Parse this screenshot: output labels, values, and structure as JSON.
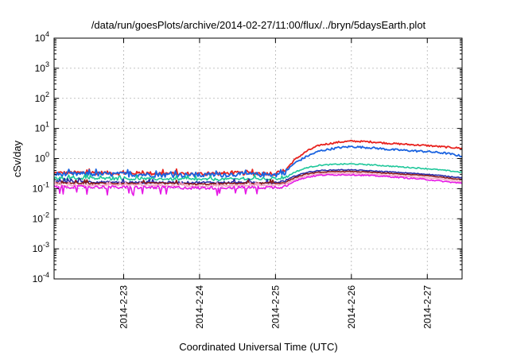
{
  "chart_data": {
    "type": "line",
    "title": "/data/run/goesPlots/archive/2014-02-27/11:00/flux/../bryn/5daysEarth.plot",
    "xlabel": "Coordinated Universal Time (UTC)",
    "ylabel": "cSv/day",
    "y_scale": "log",
    "ylim_exponents": [
      -4,
      4
    ],
    "yticks": [
      {
        "base": "10",
        "exp": "-4"
      },
      {
        "base": "10",
        "exp": "-3"
      },
      {
        "base": "10",
        "exp": "-2"
      },
      {
        "base": "10",
        "exp": "-1"
      },
      {
        "base": "10",
        "exp": "0"
      },
      {
        "base": "10",
        "exp": "1"
      },
      {
        "base": "10",
        "exp": "2"
      },
      {
        "base": "10",
        "exp": "3"
      },
      {
        "base": "10",
        "exp": "4"
      }
    ],
    "xlim": [
      "2014-02-22T02:00",
      "2014-02-27T11:00"
    ],
    "xticks": [
      {
        "label": "2014-2-23",
        "date": "2014-02-23T00:00"
      },
      {
        "label": "2014-2-24",
        "date": "2014-02-24T00:00"
      },
      {
        "label": "2014-2-25",
        "date": "2014-02-25T00:00"
      },
      {
        "label": "2014-2-26",
        "date": "2014-02-26T00:00"
      },
      {
        "label": "2014-2-27",
        "date": "2014-02-27T00:00"
      }
    ],
    "grid": true,
    "series": [
      {
        "color": "#e8231f",
        "noise": 0.09,
        "points": [
          [
            "2014-02-22T02:00",
            0.33
          ],
          [
            "2014-02-22T12:00",
            0.34
          ],
          [
            "2014-02-23T00:00",
            0.33
          ],
          [
            "2014-02-23T12:00",
            0.32
          ],
          [
            "2014-02-24T00:00",
            0.31
          ],
          [
            "2014-02-24T12:00",
            0.33
          ],
          [
            "2014-02-25T00:00",
            0.32
          ],
          [
            "2014-02-25T03:00",
            0.4
          ],
          [
            "2014-02-25T06:00",
            0.9
          ],
          [
            "2014-02-25T10:00",
            1.8
          ],
          [
            "2014-02-25T14:00",
            2.8
          ],
          [
            "2014-02-25T20:00",
            3.5
          ],
          [
            "2014-02-26T00:00",
            3.8
          ],
          [
            "2014-02-26T06:00",
            3.6
          ],
          [
            "2014-02-26T12:00",
            3.2
          ],
          [
            "2014-02-27T00:00",
            2.7
          ],
          [
            "2014-02-27T06:00",
            2.4
          ],
          [
            "2014-02-27T11:00",
            2.2
          ]
        ]
      },
      {
        "color": "#1a63e0",
        "noise": 0.11,
        "points": [
          [
            "2014-02-22T02:00",
            0.3
          ],
          [
            "2014-02-22T12:00",
            0.31
          ],
          [
            "2014-02-23T00:00",
            0.3
          ],
          [
            "2014-02-23T12:00",
            0.29
          ],
          [
            "2014-02-24T00:00",
            0.28
          ],
          [
            "2014-02-24T12:00",
            0.3
          ],
          [
            "2014-02-25T00:00",
            0.29
          ],
          [
            "2014-02-25T03:00",
            0.35
          ],
          [
            "2014-02-25T06:00",
            0.7
          ],
          [
            "2014-02-25T10:00",
            1.2
          ],
          [
            "2014-02-25T14:00",
            1.8
          ],
          [
            "2014-02-25T20:00",
            2.3
          ],
          [
            "2014-02-26T00:00",
            2.5
          ],
          [
            "2014-02-26T06:00",
            2.3
          ],
          [
            "2014-02-26T12:00",
            2.0
          ],
          [
            "2014-02-27T00:00",
            1.7
          ],
          [
            "2014-02-27T06:00",
            1.5
          ],
          [
            "2014-02-27T11:00",
            1.2
          ]
        ]
      },
      {
        "color": "#1fc79a",
        "noise": 0.06,
        "points": [
          [
            "2014-02-22T02:00",
            0.22
          ],
          [
            "2014-02-22T12:00",
            0.22
          ],
          [
            "2014-02-23T00:00",
            0.21
          ],
          [
            "2014-02-23T12:00",
            0.21
          ],
          [
            "2014-02-24T00:00",
            0.2
          ],
          [
            "2014-02-24T12:00",
            0.21
          ],
          [
            "2014-02-25T00:00",
            0.21
          ],
          [
            "2014-02-25T03:00",
            0.23
          ],
          [
            "2014-02-25T06:00",
            0.35
          ],
          [
            "2014-02-25T10:00",
            0.5
          ],
          [
            "2014-02-25T14:00",
            0.6
          ],
          [
            "2014-02-25T20:00",
            0.65
          ],
          [
            "2014-02-26T00:00",
            0.66
          ],
          [
            "2014-02-26T06:00",
            0.62
          ],
          [
            "2014-02-26T12:00",
            0.56
          ],
          [
            "2014-02-27T00:00",
            0.46
          ],
          [
            "2014-02-27T06:00",
            0.4
          ],
          [
            "2014-02-27T11:00",
            0.35
          ]
        ]
      },
      {
        "color": "#2a2aa8",
        "noise": 0.05,
        "points": [
          [
            "2014-02-22T02:00",
            0.17
          ],
          [
            "2014-02-22T12:00",
            0.17
          ],
          [
            "2014-02-23T00:00",
            0.16
          ],
          [
            "2014-02-23T12:00",
            0.16
          ],
          [
            "2014-02-24T00:00",
            0.16
          ],
          [
            "2014-02-24T12:00",
            0.16
          ],
          [
            "2014-02-25T00:00",
            0.16
          ],
          [
            "2014-02-25T03:00",
            0.18
          ],
          [
            "2014-02-25T06:00",
            0.26
          ],
          [
            "2014-02-25T10:00",
            0.35
          ],
          [
            "2014-02-25T14:00",
            0.4
          ],
          [
            "2014-02-25T20:00",
            0.42
          ],
          [
            "2014-02-26T00:00",
            0.42
          ],
          [
            "2014-02-26T06:00",
            0.39
          ],
          [
            "2014-02-26T12:00",
            0.36
          ],
          [
            "2014-02-27T00:00",
            0.3
          ],
          [
            "2014-02-27T06:00",
            0.26
          ],
          [
            "2014-02-27T11:00",
            0.23
          ]
        ]
      },
      {
        "color": "#8b1a1a",
        "noise": 0.04,
        "points": [
          [
            "2014-02-22T02:00",
            0.15
          ],
          [
            "2014-02-22T12:00",
            0.15
          ],
          [
            "2014-02-23T00:00",
            0.15
          ],
          [
            "2014-02-23T12:00",
            0.15
          ],
          [
            "2014-02-24T00:00",
            0.14
          ],
          [
            "2014-02-24T12:00",
            0.15
          ],
          [
            "2014-02-25T00:00",
            0.15
          ],
          [
            "2014-02-25T03:00",
            0.16
          ],
          [
            "2014-02-25T06:00",
            0.23
          ],
          [
            "2014-02-25T10:00",
            0.31
          ],
          [
            "2014-02-25T14:00",
            0.35
          ],
          [
            "2014-02-25T20:00",
            0.37
          ],
          [
            "2014-02-26T00:00",
            0.37
          ],
          [
            "2014-02-26T06:00",
            0.35
          ],
          [
            "2014-02-26T12:00",
            0.32
          ],
          [
            "2014-02-27T00:00",
            0.27
          ],
          [
            "2014-02-27T06:00",
            0.23
          ],
          [
            "2014-02-27T11:00",
            0.2
          ]
        ]
      },
      {
        "color": "#f2a3c4",
        "noise": 0.04,
        "points": [
          [
            "2014-02-22T02:00",
            0.13
          ],
          [
            "2014-02-22T12:00",
            0.13
          ],
          [
            "2014-02-23T00:00",
            0.13
          ],
          [
            "2014-02-23T12:00",
            0.13
          ],
          [
            "2014-02-24T00:00",
            0.12
          ],
          [
            "2014-02-24T12:00",
            0.13
          ],
          [
            "2014-02-25T00:00",
            0.13
          ],
          [
            "2014-02-25T03:00",
            0.14
          ],
          [
            "2014-02-25T06:00",
            0.2
          ],
          [
            "2014-02-25T10:00",
            0.27
          ],
          [
            "2014-02-25T14:00",
            0.31
          ],
          [
            "2014-02-25T20:00",
            0.32
          ],
          [
            "2014-02-26T00:00",
            0.32
          ],
          [
            "2014-02-26T06:00",
            0.3
          ],
          [
            "2014-02-26T12:00",
            0.28
          ],
          [
            "2014-02-27T00:00",
            0.23
          ],
          [
            "2014-02-27T06:00",
            0.2
          ],
          [
            "2014-02-27T11:00",
            0.17
          ]
        ]
      },
      {
        "color": "#e619e6",
        "noise": 0.07,
        "points": [
          [
            "2014-02-22T02:00",
            0.115
          ],
          [
            "2014-02-22T12:00",
            0.115
          ],
          [
            "2014-02-23T00:00",
            0.11
          ],
          [
            "2014-02-23T12:00",
            0.11
          ],
          [
            "2014-02-24T00:00",
            0.105
          ],
          [
            "2014-02-24T12:00",
            0.11
          ],
          [
            "2014-02-25T00:00",
            0.11
          ],
          [
            "2014-02-25T03:00",
            0.12
          ],
          [
            "2014-02-25T06:00",
            0.18
          ],
          [
            "2014-02-25T10:00",
            0.24
          ],
          [
            "2014-02-25T14:00",
            0.28
          ],
          [
            "2014-02-25T20:00",
            0.29
          ],
          [
            "2014-02-26T00:00",
            0.29
          ],
          [
            "2014-02-26T06:00",
            0.27
          ],
          [
            "2014-02-26T12:00",
            0.25
          ],
          [
            "2014-02-27T00:00",
            0.2
          ],
          [
            "2014-02-27T06:00",
            0.17
          ],
          [
            "2014-02-27T11:00",
            0.15
          ]
        ]
      }
    ]
  }
}
